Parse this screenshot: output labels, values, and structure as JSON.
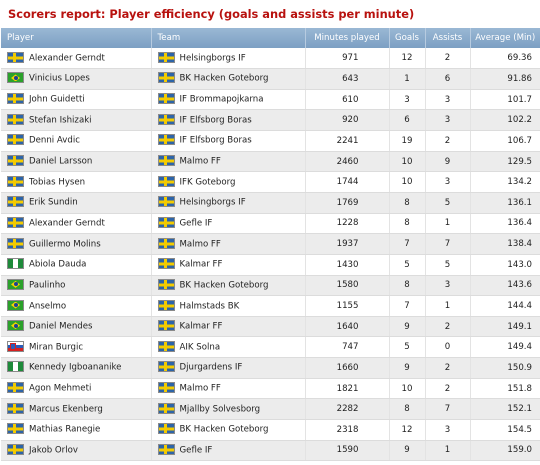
{
  "title": "Scorers report: Player efficiency (goals and assists per minute)",
  "columns": {
    "player": "Player",
    "team": "Team",
    "minutes": "Minutes played",
    "goals": "Goals",
    "assists": "Assists",
    "average": "Average (Min)"
  },
  "flag_colors": {
    "sweden_blue": "#2d64a8",
    "sweden_yellow": "#f4cb00",
    "brazil_green": "#2ba12b",
    "nigeria_green": "#1e8a3a",
    "slovenia_blue": "#2a5bb8",
    "slovenia_red": "#d42020"
  },
  "rows": [
    {
      "player": "Alexander Gerndt",
      "player_flag": "sweden-flag-icon",
      "team": "Helsingborgs IF",
      "team_flag": "sweden-flag-icon",
      "minutes": "971",
      "goals": "12",
      "assists": "2",
      "average": "69.36"
    },
    {
      "player": "Vinicius Lopes",
      "player_flag": "brazil-flag-icon",
      "team": "BK Hacken Goteborg",
      "team_flag": "sweden-flag-icon",
      "minutes": "643",
      "goals": "1",
      "assists": "6",
      "average": "91.86"
    },
    {
      "player": "John Guidetti",
      "player_flag": "sweden-flag-icon",
      "team": "IF Brommapojkarna",
      "team_flag": "sweden-flag-icon",
      "minutes": "610",
      "goals": "3",
      "assists": "3",
      "average": "101.7"
    },
    {
      "player": "Stefan Ishizaki",
      "player_flag": "sweden-flag-icon",
      "team": "IF Elfsborg Boras",
      "team_flag": "sweden-flag-icon",
      "minutes": "920",
      "goals": "6",
      "assists": "3",
      "average": "102.2"
    },
    {
      "player": "Denni Avdic",
      "player_flag": "sweden-flag-icon",
      "team": "IF Elfsborg Boras",
      "team_flag": "sweden-flag-icon",
      "minutes": "2241",
      "goals": "19",
      "assists": "2",
      "average": "106.7"
    },
    {
      "player": "Daniel Larsson",
      "player_flag": "sweden-flag-icon",
      "team": "Malmo FF",
      "team_flag": "sweden-flag-icon",
      "minutes": "2460",
      "goals": "10",
      "assists": "9",
      "average": "129.5"
    },
    {
      "player": "Tobias Hysen",
      "player_flag": "sweden-flag-icon",
      "team": "IFK Goteborg",
      "team_flag": "sweden-flag-icon",
      "minutes": "1744",
      "goals": "10",
      "assists": "3",
      "average": "134.2"
    },
    {
      "player": "Erik Sundin",
      "player_flag": "sweden-flag-icon",
      "team": "Helsingborgs IF",
      "team_flag": "sweden-flag-icon",
      "minutes": "1769",
      "goals": "8",
      "assists": "5",
      "average": "136.1"
    },
    {
      "player": "Alexander Gerndt",
      "player_flag": "sweden-flag-icon",
      "team": "Gefle IF",
      "team_flag": "sweden-flag-icon",
      "minutes": "1228",
      "goals": "8",
      "assists": "1",
      "average": "136.4"
    },
    {
      "player": "Guillermo Molins",
      "player_flag": "sweden-flag-icon",
      "team": "Malmo FF",
      "team_flag": "sweden-flag-icon",
      "minutes": "1937",
      "goals": "7",
      "assists": "7",
      "average": "138.4"
    },
    {
      "player": "Abiola Dauda",
      "player_flag": "nigeria-flag-icon",
      "team": "Kalmar FF",
      "team_flag": "sweden-flag-icon",
      "minutes": "1430",
      "goals": "5",
      "assists": "5",
      "average": "143.0"
    },
    {
      "player": "Paulinho",
      "player_flag": "brazil-flag-icon",
      "team": "BK Hacken Goteborg",
      "team_flag": "sweden-flag-icon",
      "minutes": "1580",
      "goals": "8",
      "assists": "3",
      "average": "143.6"
    },
    {
      "player": "Anselmo",
      "player_flag": "brazil-flag-icon",
      "team": "Halmstads BK",
      "team_flag": "sweden-flag-icon",
      "minutes": "1155",
      "goals": "7",
      "assists": "1",
      "average": "144.4"
    },
    {
      "player": "Daniel Mendes",
      "player_flag": "brazil-flag-icon",
      "team": "Kalmar FF",
      "team_flag": "sweden-flag-icon",
      "minutes": "1640",
      "goals": "9",
      "assists": "2",
      "average": "149.1"
    },
    {
      "player": "Miran Burgic",
      "player_flag": "slovenia-flag-icon",
      "team": "AIK Solna",
      "team_flag": "sweden-flag-icon",
      "minutes": "747",
      "goals": "5",
      "assists": "0",
      "average": "149.4"
    },
    {
      "player": "Kennedy Igboananike",
      "player_flag": "nigeria-flag-icon",
      "team": "Djurgardens IF",
      "team_flag": "sweden-flag-icon",
      "minutes": "1660",
      "goals": "9",
      "assists": "2",
      "average": "150.9"
    },
    {
      "player": "Agon Mehmeti",
      "player_flag": "sweden-flag-icon",
      "team": "Malmo FF",
      "team_flag": "sweden-flag-icon",
      "minutes": "1821",
      "goals": "10",
      "assists": "2",
      "average": "151.8"
    },
    {
      "player": "Marcus Ekenberg",
      "player_flag": "sweden-flag-icon",
      "team": "Mjallby Solvesborg",
      "team_flag": "sweden-flag-icon",
      "minutes": "2282",
      "goals": "8",
      "assists": "7",
      "average": "152.1"
    },
    {
      "player": "Mathias Ranegie",
      "player_flag": "sweden-flag-icon",
      "team": "BK Hacken Goteborg",
      "team_flag": "sweden-flag-icon",
      "minutes": "2318",
      "goals": "12",
      "assists": "3",
      "average": "154.5"
    },
    {
      "player": "Jakob Orlov",
      "player_flag": "sweden-flag-icon",
      "team": "Gefle IF",
      "team_flag": "sweden-flag-icon",
      "minutes": "1590",
      "goals": "9",
      "assists": "1",
      "average": "159.0"
    }
  ]
}
